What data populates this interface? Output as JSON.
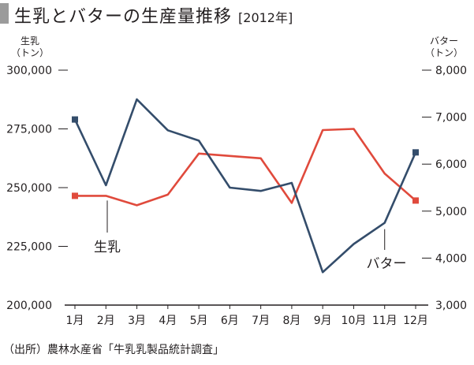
{
  "title": "生乳とバターの生産量推移",
  "title_year": "[2012年]",
  "left_unit": [
    "生乳",
    "（トン）"
  ],
  "right_unit": [
    "バター",
    "（トン）"
  ],
  "source": "（出所）農林水産省「牛乳乳製品統計調査」",
  "colors": {
    "milk": "#e04a3c",
    "butter": "#344d6b",
    "axis": "#231f20",
    "title_marker": "#9b9b9b"
  },
  "chart_data": {
    "type": "line",
    "categories": [
      "1月",
      "2月",
      "3月",
      "4月",
      "5月",
      "6月",
      "7月",
      "8月",
      "9月",
      "10月",
      "11月",
      "12月"
    ],
    "left_axis": {
      "ylim": [
        200000,
        300000
      ],
      "ticks": [
        "200,000",
        "225,000",
        "250,000",
        "275,000",
        "300,000"
      ]
    },
    "right_axis": {
      "ylim": [
        3000,
        8000
      ],
      "ticks": [
        "3,000",
        "4,000",
        "5,000",
        "6,000",
        "7,000",
        "8,000"
      ]
    },
    "series": [
      {
        "name": "生乳",
        "axis": "left",
        "color": "#e04a3c",
        "values": [
          246500,
          246500,
          242500,
          247000,
          264500,
          263500,
          262500,
          243500,
          274500,
          275000,
          256000,
          244500
        ]
      },
      {
        "name": "バター",
        "axis": "right",
        "color": "#344d6b",
        "values": [
          6950,
          5550,
          7380,
          6720,
          6500,
          5500,
          5430,
          5600,
          3700,
          4300,
          4750,
          6250
        ]
      }
    ],
    "grid": false,
    "legend": "inline labels"
  }
}
